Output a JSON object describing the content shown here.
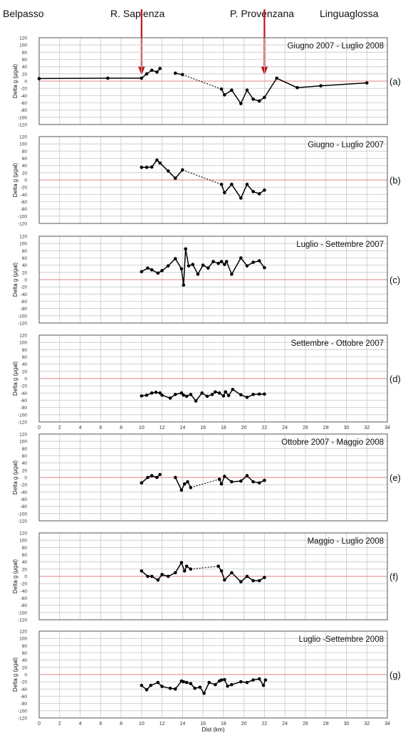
{
  "header": {
    "locations": [
      "Belpasso",
      "R. Sapienza",
      "P. Provenzana",
      "Linguaglossa"
    ],
    "arrow_x_km": [
      10,
      22
    ],
    "arrow_color": "#c0141b"
  },
  "shared": {
    "ylabel": "Delta g (μgal)",
    "xlabel": "Dist (km)",
    "xlim": [
      0,
      34
    ],
    "xticks": [
      0,
      2,
      4,
      6,
      8,
      10,
      12,
      14,
      16,
      18,
      20,
      22,
      24,
      26,
      28,
      30,
      32,
      34
    ],
    "ylim": [
      -120,
      120
    ],
    "yticks": [
      -120,
      -100,
      -80,
      -60,
      -40,
      -20,
      0,
      20,
      40,
      60,
      80,
      100,
      120
    ],
    "grid": true,
    "zero_line_color": "#e08080",
    "line_color": "#000000"
  },
  "chart_data": [
    {
      "type": "line",
      "label": "(a)",
      "title": "Giugno 2007 - Luglio 2008",
      "segments": [
        {
          "dashed": false,
          "x": [
            0,
            6.7,
            10,
            10.5,
            11,
            11.5,
            11.8
          ],
          "y": [
            7,
            8,
            8,
            20,
            30,
            25,
            35
          ]
        },
        {
          "dashed": false,
          "x": [
            13.3,
            14
          ],
          "y": [
            22,
            18
          ]
        },
        {
          "dashed": true,
          "x": [
            14,
            17.8
          ],
          "y": [
            18,
            -22
          ]
        },
        {
          "dashed": false,
          "x": [
            17.8,
            18.1,
            18.8,
            19.7,
            20.3,
            20.9,
            21.5,
            22,
            23.2,
            25.2,
            27.5,
            32
          ],
          "y": [
            -22,
            -38,
            -25,
            -62,
            -25,
            -50,
            -55,
            -45,
            8,
            -18,
            -13,
            -5
          ]
        }
      ]
    },
    {
      "type": "line",
      "label": "(b)",
      "title": "Giugno - Luglio 2007",
      "segments": [
        {
          "dashed": false,
          "x": [
            10,
            10.5,
            11,
            11.5,
            11.8,
            12.6,
            13.3,
            14
          ],
          "y": [
            35,
            35,
            36,
            55,
            47,
            25,
            5,
            28
          ]
        },
        {
          "dashed": true,
          "x": [
            14,
            17.8
          ],
          "y": [
            28,
            -12
          ]
        },
        {
          "dashed": false,
          "x": [
            17.8,
            18.1,
            18.8,
            19.7,
            20.3,
            20.9,
            21.5,
            22
          ],
          "y": [
            -12,
            -35,
            -12,
            -50,
            -12,
            -32,
            -38,
            -28
          ]
        }
      ]
    },
    {
      "type": "line",
      "label": "(c)",
      "title": "Luglio - Settembre 2007",
      "segments": [
        {
          "dashed": false,
          "x": [
            10,
            10.6,
            11,
            11.6,
            12,
            12.6,
            13.3,
            13.9,
            14.1,
            14.3,
            14.6,
            15,
            15.5,
            16,
            16.5,
            17,
            17.5,
            17.8,
            18.1,
            18.3,
            18.8,
            19.7,
            20.3,
            20.9,
            21.5,
            22
          ],
          "y": [
            22,
            32,
            27,
            18,
            25,
            38,
            58,
            30,
            -15,
            85,
            38,
            42,
            15,
            40,
            32,
            50,
            45,
            50,
            42,
            50,
            15,
            60,
            38,
            48,
            52,
            33
          ]
        }
      ]
    },
    {
      "type": "line",
      "label": "(d)",
      "title": "Settembre - Ottobre 2007",
      "segments": [
        {
          "dashed": false,
          "x": [
            10,
            10.5,
            11,
            11.4,
            11.8,
            12,
            12.8,
            13.3,
            13.9,
            14.1,
            14.4,
            14.8,
            15.3,
            15.9,
            16.4,
            16.9,
            17.2,
            17.6,
            18,
            18.2,
            18.5,
            18.9,
            19.7,
            20.3,
            20.9,
            21.5,
            22
          ],
          "y": [
            -48,
            -46,
            -40,
            -38,
            -40,
            -46,
            -54,
            -44,
            -40,
            -46,
            -49,
            -44,
            -62,
            -40,
            -49,
            -44,
            -37,
            -40,
            -48,
            -37,
            -47,
            -30,
            -45,
            -52,
            -44,
            -43,
            -43
          ]
        }
      ]
    },
    {
      "type": "line",
      "label": "(e)",
      "title": "Ottobre 2007 - Maggio 2008",
      "segments": [
        {
          "dashed": false,
          "x": [
            10,
            10.6,
            11,
            11.5,
            11.8
          ],
          "y": [
            -15,
            0,
            5,
            0,
            8
          ]
        },
        {
          "dashed": false,
          "x": [
            13.3,
            13.9,
            14.2,
            14.5,
            14.8
          ],
          "y": [
            0,
            -35,
            -18,
            -12,
            -28
          ]
        },
        {
          "dashed": true,
          "x": [
            14.8,
            17.6
          ],
          "y": [
            -28,
            -5
          ]
        },
        {
          "dashed": false,
          "x": [
            17.6,
            17.8,
            18.1,
            18.8,
            19.7,
            20.3,
            20.9,
            21.5,
            22
          ],
          "y": [
            -5,
            -18,
            3,
            -12,
            -10,
            5,
            -12,
            -15,
            -8
          ]
        }
      ]
    },
    {
      "type": "line",
      "label": "(f)",
      "title": "Maggio - Luglio 2008",
      "segments": [
        {
          "dashed": false,
          "x": [
            10,
            10.6,
            11,
            11.6,
            12,
            12.6,
            13.3,
            13.9,
            14.2,
            14.4,
            14.8
          ],
          "y": [
            15,
            0,
            0,
            -10,
            5,
            0,
            10,
            38,
            15,
            28,
            20
          ]
        },
        {
          "dashed": true,
          "x": [
            14.8,
            17.5
          ],
          "y": [
            20,
            28
          ]
        },
        {
          "dashed": false,
          "x": [
            17.5,
            17.8,
            18.1,
            18.8,
            19.7,
            20.3,
            20.9,
            21.5,
            22
          ],
          "y": [
            28,
            15,
            -10,
            10,
            -15,
            0,
            -12,
            -12,
            -3
          ]
        }
      ]
    },
    {
      "type": "line",
      "label": "(g)",
      "title": "Luglio -Settembre 2008",
      "segments": [
        {
          "dashed": false,
          "x": [
            10,
            10.5,
            10.9,
            11.6,
            12,
            12.8,
            13.3,
            13.9,
            14.1,
            14.4,
            14.8,
            15.2,
            15.7,
            16.1,
            16.6,
            17.2,
            17.6,
            17.8,
            18.1,
            18.4,
            18.8,
            19.7,
            20.3,
            20.9,
            21.5,
            21.9,
            22.1
          ],
          "y": [
            -30,
            -42,
            -30,
            -22,
            -33,
            -38,
            -40,
            -18,
            -20,
            -22,
            -25,
            -38,
            -35,
            -52,
            -22,
            -28,
            -18,
            -15,
            -14,
            -32,
            -28,
            -20,
            -22,
            -15,
            -12,
            -30,
            -15
          ]
        }
      ]
    }
  ]
}
